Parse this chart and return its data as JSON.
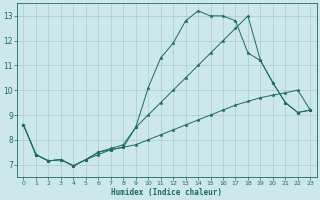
{
  "bg_color": "#cde8e8",
  "grid_color": "#a8cccc",
  "line_color": "#1a6b60",
  "xlabel": "Humidex (Indice chaleur)",
  "xlim": [
    -0.5,
    23.5
  ],
  "ylim": [
    6.5,
    13.5
  ],
  "xticks": [
    0,
    1,
    2,
    3,
    4,
    5,
    6,
    7,
    8,
    9,
    10,
    11,
    12,
    13,
    14,
    15,
    16,
    17,
    18,
    19,
    20,
    21,
    22,
    23
  ],
  "yticks": [
    7,
    8,
    9,
    10,
    11,
    12,
    13
  ],
  "line1_x": [
    0,
    1,
    2,
    3,
    4,
    5,
    6,
    7,
    8,
    9,
    10,
    11,
    12,
    13,
    14,
    15,
    16,
    17,
    18,
    19,
    20,
    21,
    22,
    23
  ],
  "line1_y": [
    8.6,
    7.4,
    7.15,
    7.2,
    6.95,
    7.2,
    7.5,
    7.6,
    7.7,
    8.5,
    10.1,
    11.3,
    11.9,
    12.8,
    13.2,
    13.0,
    13.0,
    12.8,
    11.5,
    11.2,
    10.3,
    9.5,
    9.1,
    9.2
  ],
  "line2_x": [
    0,
    1,
    2,
    3,
    4,
    5,
    6,
    7,
    8,
    9,
    10,
    11,
    12,
    13,
    14,
    15,
    16,
    17,
    18,
    19,
    20,
    21,
    22,
    23
  ],
  "line2_y": [
    8.6,
    7.4,
    7.15,
    7.2,
    6.95,
    7.2,
    7.5,
    7.65,
    7.8,
    8.5,
    9.0,
    9.5,
    10.0,
    10.5,
    11.0,
    11.5,
    12.0,
    12.5,
    13.0,
    11.2,
    10.3,
    9.5,
    9.1,
    9.2
  ],
  "line3_x": [
    0,
    1,
    2,
    3,
    4,
    5,
    6,
    7,
    8,
    9,
    10,
    11,
    12,
    13,
    14,
    15,
    16,
    17,
    18,
    19,
    20,
    21,
    22,
    23
  ],
  "line3_y": [
    8.6,
    7.4,
    7.15,
    7.2,
    6.95,
    7.2,
    7.4,
    7.6,
    7.7,
    7.8,
    8.0,
    8.2,
    8.4,
    8.6,
    8.8,
    9.0,
    9.2,
    9.4,
    9.55,
    9.7,
    9.8,
    9.9,
    10.0,
    9.2
  ]
}
